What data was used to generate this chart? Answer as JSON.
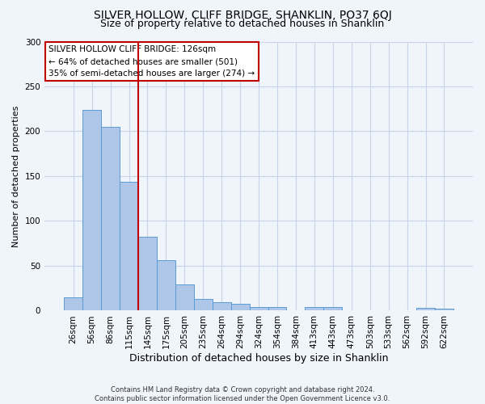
{
  "title": "SILVER HOLLOW, CLIFF BRIDGE, SHANKLIN, PO37 6QJ",
  "subtitle": "Size of property relative to detached houses in Shanklin",
  "xlabel": "Distribution of detached houses by size in Shanklin",
  "ylabel": "Number of detached properties",
  "categories": [
    "26sqm",
    "56sqm",
    "86sqm",
    "115sqm",
    "145sqm",
    "175sqm",
    "205sqm",
    "235sqm",
    "264sqm",
    "294sqm",
    "324sqm",
    "354sqm",
    "384sqm",
    "413sqm",
    "443sqm",
    "473sqm",
    "503sqm",
    "533sqm",
    "562sqm",
    "592sqm",
    "622sqm"
  ],
  "values": [
    15,
    224,
    205,
    144,
    82,
    56,
    29,
    13,
    9,
    8,
    4,
    4,
    0,
    4,
    4,
    0,
    0,
    0,
    0,
    3,
    2
  ],
  "bar_color": "#aec6e8",
  "bar_edge_color": "#5b9bd5",
  "vline_x": 3.5,
  "vline_color": "#c00000",
  "annotation_text": "SILVER HOLLOW CLIFF BRIDGE: 126sqm\n← 64% of detached houses are smaller (501)\n35% of semi-detached houses are larger (274) →",
  "annotation_box_color": "#ffffff",
  "annotation_box_edge": "#c00000",
  "ylim": [
    0,
    300
  ],
  "yticks": [
    0,
    50,
    100,
    150,
    200,
    250,
    300
  ],
  "title_fontsize": 10,
  "subtitle_fontsize": 9,
  "xlabel_fontsize": 9,
  "ylabel_fontsize": 8,
  "tick_fontsize": 7.5,
  "annot_fontsize": 7.5,
  "footer_text": "Contains HM Land Registry data © Crown copyright and database right 2024.\nContains public sector information licensed under the Open Government Licence v3.0.",
  "bg_color": "#f0f4fb",
  "grid_color": "#c8d4e8"
}
